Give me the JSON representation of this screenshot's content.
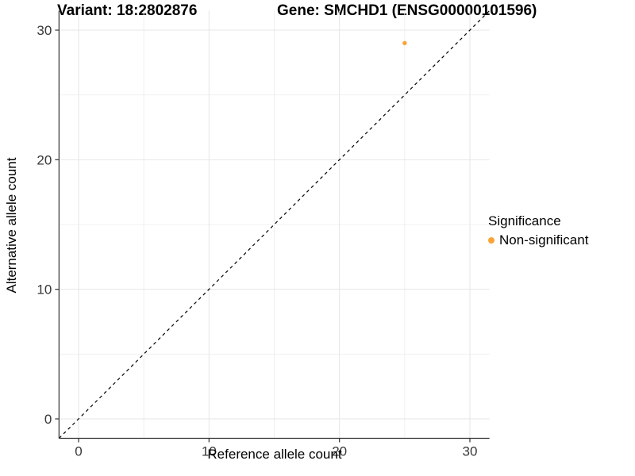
{
  "titles": {
    "variant": "Variant: 18:2802876",
    "gene": "Gene: SMCHD1 (ENSG00000101596)"
  },
  "chart_data": {
    "type": "scatter",
    "title": "Variant: 18:2802876  Gene: SMCHD1 (ENSG00000101596)",
    "xlabel": "Reference allele count",
    "ylabel": "Alternative allele count",
    "xlim": [
      -1.5,
      31.5
    ],
    "ylim": [
      -1.5,
      31.5
    ],
    "x_major_ticks": [
      0,
      10,
      20,
      30
    ],
    "y_major_ticks": [
      0,
      10,
      20,
      30
    ],
    "minor_gridlines": [
      5,
      15,
      25
    ],
    "grid": true,
    "identity_line": {
      "slope": 1,
      "intercept": 0,
      "style": "dashed",
      "color": "#000000"
    },
    "series": [
      {
        "name": "Non-significant",
        "color": "#FBA338",
        "points": [
          {
            "x": 25,
            "y": 29
          }
        ]
      }
    ],
    "legend": {
      "title": "Significance",
      "position": "right",
      "items": [
        {
          "label": "Non-significant",
          "color": "#FBA338"
        }
      ]
    }
  },
  "colors": {
    "background": "#FFFFFF",
    "grid_major": "#E6E6E6",
    "grid_minor": "#F0F0F0",
    "axis_line": "#333333",
    "tick_text": "#383838",
    "point": "#FBA338"
  }
}
